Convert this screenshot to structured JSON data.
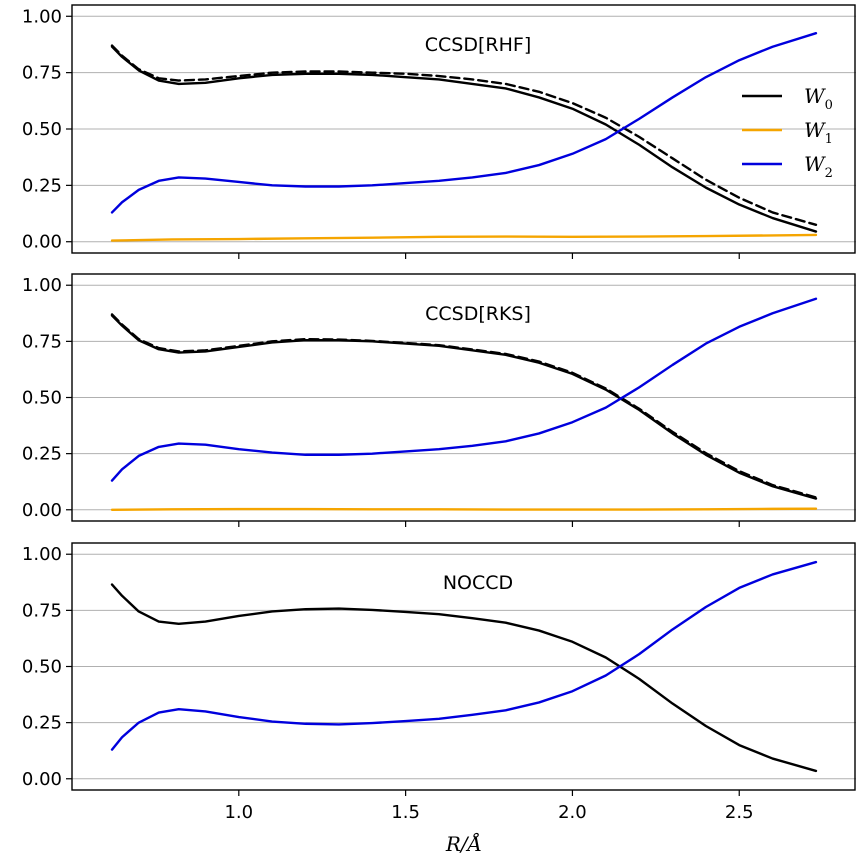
{
  "chart_data": {
    "type": "line",
    "xlabel": "R/Å",
    "x_ticks": [
      "1.0",
      "1.5",
      "2.0",
      "2.5"
    ],
    "y_ticks": [
      "0.00",
      "0.25",
      "0.50",
      "0.75",
      "1.00"
    ],
    "xlim": [
      0.5,
      2.85
    ],
    "ylim": [
      -0.05,
      1.05
    ],
    "grid": "horizontal",
    "legend": {
      "placement": "right",
      "entries": [
        {
          "label": "W",
          "sub": "0",
          "color": "#000000"
        },
        {
          "label": "W",
          "sub": "1",
          "color": "#f5a500"
        },
        {
          "label": "W",
          "sub": "2",
          "color": "#0000dd"
        }
      ]
    },
    "panels": [
      {
        "title": "CCSD[RHF]",
        "series": [
          {
            "key": "W0",
            "style": "solid",
            "color": "#000000",
            "points": [
              [
                0.62,
                0.865
              ],
              [
                0.65,
                0.82
              ],
              [
                0.7,
                0.76
              ],
              [
                0.76,
                0.715
              ],
              [
                0.82,
                0.7
              ],
              [
                0.9,
                0.705
              ],
              [
                1.0,
                0.725
              ],
              [
                1.1,
                0.74
              ],
              [
                1.2,
                0.745
              ],
              [
                1.3,
                0.745
              ],
              [
                1.4,
                0.74
              ],
              [
                1.5,
                0.73
              ],
              [
                1.6,
                0.72
              ],
              [
                1.7,
                0.7
              ],
              [
                1.8,
                0.68
              ],
              [
                1.9,
                0.64
              ],
              [
                2.0,
                0.59
              ],
              [
                2.1,
                0.52
              ],
              [
                2.2,
                0.43
              ],
              [
                2.3,
                0.33
              ],
              [
                2.4,
                0.24
              ],
              [
                2.5,
                0.165
              ],
              [
                2.6,
                0.105
              ],
              [
                2.73,
                0.045
              ]
            ]
          },
          {
            "key": "W0_ref",
            "style": "dashed",
            "color": "#000000",
            "points": [
              [
                0.62,
                0.87
              ],
              [
                0.65,
                0.825
              ],
              [
                0.7,
                0.765
              ],
              [
                0.76,
                0.725
              ],
              [
                0.82,
                0.715
              ],
              [
                0.9,
                0.72
              ],
              [
                1.0,
                0.735
              ],
              [
                1.1,
                0.75
              ],
              [
                1.2,
                0.755
              ],
              [
                1.3,
                0.755
              ],
              [
                1.4,
                0.75
              ],
              [
                1.5,
                0.745
              ],
              [
                1.6,
                0.735
              ],
              [
                1.7,
                0.72
              ],
              [
                1.8,
                0.7
              ],
              [
                1.9,
                0.665
              ],
              [
                2.0,
                0.615
              ],
              [
                2.1,
                0.55
              ],
              [
                2.2,
                0.465
              ],
              [
                2.3,
                0.37
              ],
              [
                2.4,
                0.275
              ],
              [
                2.5,
                0.195
              ],
              [
                2.6,
                0.13
              ],
              [
                2.73,
                0.075
              ]
            ]
          },
          {
            "key": "W1",
            "style": "solid",
            "color": "#f5a500",
            "points": [
              [
                0.62,
                0.005
              ],
              [
                0.8,
                0.01
              ],
              [
                1.0,
                0.012
              ],
              [
                1.2,
                0.015
              ],
              [
                1.4,
                0.018
              ],
              [
                1.6,
                0.022
              ],
              [
                1.8,
                0.023
              ],
              [
                2.0,
                0.022
              ],
              [
                2.2,
                0.023
              ],
              [
                2.4,
                0.025
              ],
              [
                2.6,
                0.028
              ],
              [
                2.73,
                0.03
              ]
            ]
          },
          {
            "key": "W2",
            "style": "solid",
            "color": "#0000dd",
            "points": [
              [
                0.62,
                0.13
              ],
              [
                0.65,
                0.175
              ],
              [
                0.7,
                0.23
              ],
              [
                0.76,
                0.27
              ],
              [
                0.82,
                0.285
              ],
              [
                0.9,
                0.28
              ],
              [
                1.0,
                0.265
              ],
              [
                1.1,
                0.25
              ],
              [
                1.2,
                0.245
              ],
              [
                1.3,
                0.245
              ],
              [
                1.4,
                0.25
              ],
              [
                1.5,
                0.26
              ],
              [
                1.6,
                0.27
              ],
              [
                1.7,
                0.285
              ],
              [
                1.8,
                0.305
              ],
              [
                1.9,
                0.34
              ],
              [
                2.0,
                0.39
              ],
              [
                2.1,
                0.455
              ],
              [
                2.2,
                0.545
              ],
              [
                2.3,
                0.64
              ],
              [
                2.4,
                0.73
              ],
              [
                2.5,
                0.805
              ],
              [
                2.6,
                0.865
              ],
              [
                2.73,
                0.925
              ]
            ]
          }
        ]
      },
      {
        "title": "CCSD[RKS]",
        "series": [
          {
            "key": "W0",
            "style": "solid",
            "color": "#000000",
            "points": [
              [
                0.62,
                0.865
              ],
              [
                0.65,
                0.82
              ],
              [
                0.7,
                0.755
              ],
              [
                0.76,
                0.715
              ],
              [
                0.82,
                0.7
              ],
              [
                0.9,
                0.705
              ],
              [
                1.0,
                0.725
              ],
              [
                1.1,
                0.745
              ],
              [
                1.2,
                0.755
              ],
              [
                1.3,
                0.755
              ],
              [
                1.4,
                0.75
              ],
              [
                1.5,
                0.74
              ],
              [
                1.6,
                0.73
              ],
              [
                1.7,
                0.71
              ],
              [
                1.8,
                0.69
              ],
              [
                1.9,
                0.655
              ],
              [
                2.0,
                0.605
              ],
              [
                2.1,
                0.535
              ],
              [
                2.2,
                0.445
              ],
              [
                2.3,
                0.34
              ],
              [
                2.4,
                0.245
              ],
              [
                2.5,
                0.165
              ],
              [
                2.6,
                0.105
              ],
              [
                2.73,
                0.05
              ]
            ]
          },
          {
            "key": "W0_ref",
            "style": "dashed",
            "color": "#000000",
            "points": [
              [
                0.62,
                0.87
              ],
              [
                0.65,
                0.825
              ],
              [
                0.7,
                0.76
              ],
              [
                0.76,
                0.72
              ],
              [
                0.82,
                0.705
              ],
              [
                0.9,
                0.71
              ],
              [
                1.0,
                0.73
              ],
              [
                1.1,
                0.75
              ],
              [
                1.2,
                0.76
              ],
              [
                1.3,
                0.758
              ],
              [
                1.4,
                0.752
              ],
              [
                1.5,
                0.743
              ],
              [
                1.6,
                0.733
              ],
              [
                1.7,
                0.714
              ],
              [
                1.8,
                0.694
              ],
              [
                1.9,
                0.66
              ],
              [
                2.0,
                0.61
              ],
              [
                2.1,
                0.54
              ],
              [
                2.2,
                0.45
              ],
              [
                2.3,
                0.347
              ],
              [
                2.4,
                0.252
              ],
              [
                2.5,
                0.172
              ],
              [
                2.6,
                0.11
              ],
              [
                2.73,
                0.055
              ]
            ]
          },
          {
            "key": "W1",
            "style": "solid",
            "color": "#f5a500",
            "points": [
              [
                0.62,
                0.0
              ],
              [
                0.8,
                0.002
              ],
              [
                1.0,
                0.003
              ],
              [
                1.2,
                0.003
              ],
              [
                1.4,
                0.002
              ],
              [
                1.6,
                0.002
              ],
              [
                1.8,
                0.001
              ],
              [
                2.0,
                0.001
              ],
              [
                2.2,
                0.001
              ],
              [
                2.4,
                0.002
              ],
              [
                2.6,
                0.004
              ],
              [
                2.73,
                0.005
              ]
            ]
          },
          {
            "key": "W2",
            "style": "solid",
            "color": "#0000dd",
            "points": [
              [
                0.62,
                0.13
              ],
              [
                0.65,
                0.18
              ],
              [
                0.7,
                0.24
              ],
              [
                0.76,
                0.28
              ],
              [
                0.82,
                0.295
              ],
              [
                0.9,
                0.29
              ],
              [
                1.0,
                0.27
              ],
              [
                1.1,
                0.255
              ],
              [
                1.2,
                0.245
              ],
              [
                1.3,
                0.245
              ],
              [
                1.4,
                0.25
              ],
              [
                1.5,
                0.26
              ],
              [
                1.6,
                0.27
              ],
              [
                1.7,
                0.285
              ],
              [
                1.8,
                0.305
              ],
              [
                1.9,
                0.34
              ],
              [
                2.0,
                0.39
              ],
              [
                2.1,
                0.455
              ],
              [
                2.2,
                0.545
              ],
              [
                2.3,
                0.645
              ],
              [
                2.4,
                0.74
              ],
              [
                2.5,
                0.815
              ],
              [
                2.6,
                0.875
              ],
              [
                2.73,
                0.94
              ]
            ]
          }
        ]
      },
      {
        "title": "NOCCD",
        "series": [
          {
            "key": "W0",
            "style": "solid",
            "color": "#000000",
            "points": [
              [
                0.62,
                0.865
              ],
              [
                0.65,
                0.815
              ],
              [
                0.7,
                0.745
              ],
              [
                0.76,
                0.7
              ],
              [
                0.82,
                0.69
              ],
              [
                0.9,
                0.7
              ],
              [
                1.0,
                0.725
              ],
              [
                1.1,
                0.745
              ],
              [
                1.2,
                0.755
              ],
              [
                1.3,
                0.758
              ],
              [
                1.4,
                0.752
              ],
              [
                1.5,
                0.743
              ],
              [
                1.6,
                0.733
              ],
              [
                1.7,
                0.715
              ],
              [
                1.8,
                0.695
              ],
              [
                1.9,
                0.66
              ],
              [
                2.0,
                0.61
              ],
              [
                2.1,
                0.54
              ],
              [
                2.2,
                0.445
              ],
              [
                2.3,
                0.335
              ],
              [
                2.4,
                0.235
              ],
              [
                2.5,
                0.15
              ],
              [
                2.6,
                0.09
              ],
              [
                2.73,
                0.035
              ]
            ]
          },
          {
            "key": "W2",
            "style": "solid",
            "color": "#0000dd",
            "points": [
              [
                0.62,
                0.13
              ],
              [
                0.65,
                0.185
              ],
              [
                0.7,
                0.25
              ],
              [
                0.76,
                0.295
              ],
              [
                0.82,
                0.31
              ],
              [
                0.9,
                0.3
              ],
              [
                1.0,
                0.275
              ],
              [
                1.1,
                0.255
              ],
              [
                1.2,
                0.245
              ],
              [
                1.3,
                0.242
              ],
              [
                1.4,
                0.248
              ],
              [
                1.5,
                0.257
              ],
              [
                1.6,
                0.267
              ],
              [
                1.7,
                0.285
              ],
              [
                1.8,
                0.305
              ],
              [
                1.9,
                0.34
              ],
              [
                2.0,
                0.39
              ],
              [
                2.1,
                0.46
              ],
              [
                2.2,
                0.555
              ],
              [
                2.3,
                0.665
              ],
              [
                2.4,
                0.765
              ],
              [
                2.5,
                0.85
              ],
              [
                2.6,
                0.91
              ],
              [
                2.73,
                0.965
              ]
            ]
          }
        ]
      }
    ]
  }
}
